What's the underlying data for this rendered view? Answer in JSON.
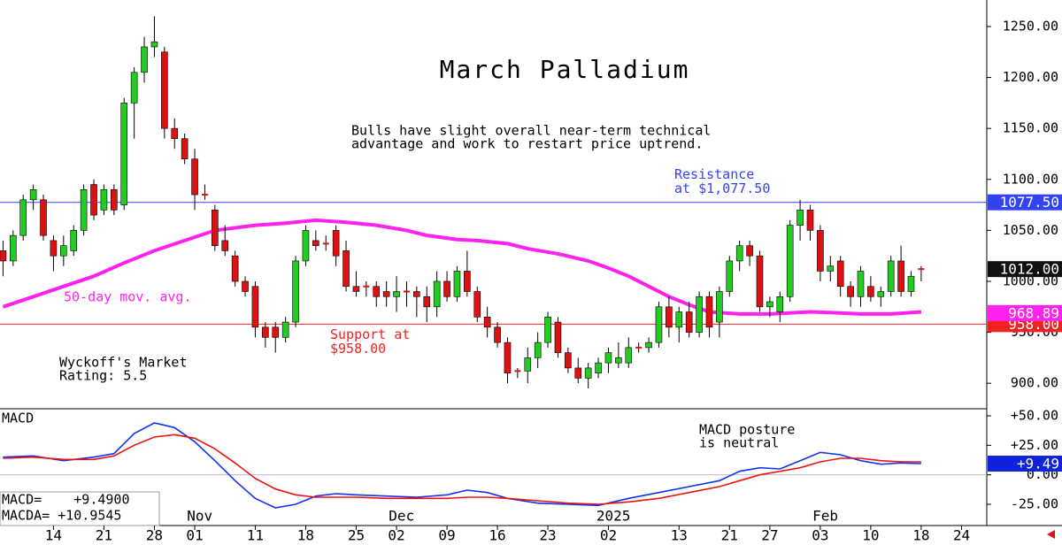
{
  "chart_data": [
    {
      "type": "candlestick",
      "title": "March Palladium",
      "notes": [
        {
          "lines": [
            "Bulls have slight overall near-term technical",
            "advantage and work to restart price uptrend."
          ],
          "color": "#000000"
        },
        {
          "lines": [
            "Wyckoff's Market",
            "Rating: 5.5"
          ],
          "color": "#000000"
        }
      ],
      "xlim": [
        -0.3,
        97.5
      ],
      "ylim": [
        875,
        1276
      ],
      "yticks": [
        {
          "value": 900,
          "label": "900.00"
        },
        {
          "value": 950,
          "label": "950.00"
        },
        {
          "value": 1000,
          "label": "1000.00"
        },
        {
          "value": 1050,
          "label": "1050.00"
        },
        {
          "value": 1100,
          "label": "1100.00"
        },
        {
          "value": 1150,
          "label": "1150.00"
        },
        {
          "value": 1200,
          "label": "1200.00"
        },
        {
          "value": 1250,
          "label": "1250.00"
        }
      ],
      "up_color": "#22cc22",
      "down_color": "#dd1111",
      "x": [
        0,
        1,
        2,
        3,
        4,
        5,
        6,
        7,
        8,
        9,
        10,
        11,
        12,
        13,
        14,
        15,
        16,
        17,
        18,
        19,
        20,
        21,
        22,
        23,
        24,
        25,
        26,
        27,
        28,
        29,
        30,
        31,
        32,
        33,
        34,
        35,
        36,
        37,
        38,
        39,
        40,
        41,
        42,
        43,
        44,
        45,
        46,
        47,
        48,
        49,
        50,
        51,
        52,
        53,
        54,
        55,
        56,
        57,
        58,
        59,
        60,
        61,
        62,
        63,
        64,
        65,
        66,
        67,
        68,
        69,
        70,
        71,
        72,
        73,
        74,
        75,
        76,
        77,
        78,
        79,
        80,
        81,
        82,
        83,
        84,
        85,
        86,
        87,
        88,
        89,
        90,
        91
      ],
      "open": [
        1030,
        1020,
        1045,
        1080,
        1080,
        1040,
        1025,
        1030,
        1050,
        1095,
        1070,
        1090,
        1075,
        1175,
        1205,
        1230,
        1225,
        1150,
        1140,
        1120,
        1085,
        1070,
        1040,
        1025,
        1000,
        995,
        955,
        955,
        945,
        960,
        1020,
        1040,
        1037,
        1050,
        1030,
        995,
        995,
        995,
        990,
        985,
        990,
        990,
        985,
        975,
        1000,
        985,
        1010,
        990,
        965,
        955,
        940,
        912,
        912,
        925,
        940,
        960,
        930,
        915,
        905,
        910,
        920,
        920,
        920,
        935,
        935,
        940,
        975,
        955,
        970,
        950,
        985,
        960,
        990,
        1020,
        1035,
        1025,
        975,
        970,
        985,
        1055,
        1070,
        1050,
        1010,
        1020,
        995,
        985,
        995,
        985,
        990,
        1020,
        990,
        1012
      ],
      "high": [
        1040,
        1050,
        1085,
        1095,
        1085,
        1045,
        1045,
        1055,
        1095,
        1100,
        1095,
        1095,
        1180,
        1210,
        1240,
        1260,
        1230,
        1160,
        1145,
        1130,
        1095,
        1075,
        1055,
        1030,
        1005,
        1000,
        960,
        960,
        965,
        1025,
        1055,
        1050,
        1045,
        1055,
        1040,
        1010,
        1000,
        1000,
        1000,
        1005,
        1000,
        995,
        995,
        1010,
        1010,
        1015,
        1030,
        995,
        975,
        960,
        945,
        915,
        935,
        950,
        970,
        965,
        935,
        925,
        920,
        925,
        935,
        940,
        945,
        940,
        945,
        980,
        985,
        975,
        980,
        990,
        990,
        995,
        1025,
        1040,
        1040,
        1030,
        985,
        990,
        1060,
        1080,
        1075,
        1055,
        1025,
        1025,
        1000,
        1015,
        1005,
        995,
        1025,
        1035,
        1010,
        1015
      ],
      "low": [
        1005,
        1015,
        1040,
        1070,
        1040,
        1010,
        1015,
        1025,
        1045,
        1060,
        1065,
        1065,
        1070,
        1140,
        1195,
        1220,
        1140,
        1130,
        1115,
        1070,
        1080,
        1030,
        1025,
        995,
        985,
        945,
        935,
        930,
        940,
        955,
        1015,
        1030,
        1030,
        1015,
        990,
        985,
        985,
        975,
        975,
        970,
        975,
        965,
        960,
        965,
        980,
        980,
        985,
        960,
        945,
        935,
        900,
        905,
        900,
        915,
        935,
        925,
        910,
        900,
        895,
        905,
        910,
        915,
        915,
        930,
        930,
        935,
        945,
        940,
        945,
        945,
        945,
        945,
        985,
        1010,
        1015,
        970,
        965,
        960,
        980,
        1040,
        1040,
        1000,
        1000,
        985,
        975,
        975,
        980,
        975,
        985,
        985,
        985,
        1000
      ],
      "close": [
        1020,
        1045,
        1080,
        1090,
        1045,
        1025,
        1035,
        1050,
        1090,
        1065,
        1090,
        1070,
        1175,
        1205,
        1230,
        1235,
        1150,
        1140,
        1120,
        1085,
        1085,
        1035,
        1030,
        1000,
        990,
        955,
        945,
        945,
        960,
        1020,
        1050,
        1035,
        1037,
        1025,
        995,
        990,
        995,
        985,
        985,
        990,
        990,
        985,
        975,
        1000,
        985,
        1010,
        990,
        965,
        955,
        940,
        910,
        912,
        925,
        940,
        965,
        930,
        915,
        905,
        915,
        920,
        930,
        925,
        935,
        935,
        940,
        975,
        955,
        970,
        950,
        985,
        955,
        990,
        1020,
        1035,
        1025,
        975,
        980,
        985,
        1055,
        1070,
        1050,
        1010,
        1015,
        995,
        985,
        1010,
        985,
        990,
        1020,
        990,
        1005,
        1012
      ],
      "series": [
        {
          "name": "50-day mov. avg.",
          "color": "#ff22ee",
          "x": [
            0,
            3,
            6,
            9,
            12,
            15,
            18,
            21,
            25,
            28,
            31,
            34,
            37,
            40,
            42,
            45,
            47,
            50,
            52,
            55,
            58,
            60,
            62,
            64,
            66,
            68,
            70,
            73,
            76,
            80,
            83,
            85,
            88,
            91
          ],
          "values": [
            975,
            985,
            995,
            1005,
            1018,
            1030,
            1040,
            1050,
            1055,
            1057,
            1060,
            1058,
            1055,
            1050,
            1045,
            1041,
            1040,
            1037,
            1032,
            1027,
            1020,
            1013,
            1005,
            995,
            985,
            977,
            970,
            968,
            968,
            970,
            969,
            968,
            968,
            970
          ]
        }
      ],
      "levels": [
        {
          "value": 1077.5,
          "lines": [
            "Resistance",
            "at $1,077.50"
          ],
          "color": "#3344ee",
          "badge": "1077.50"
        },
        {
          "value": 958,
          "lines": [
            "Support at",
            "$958.00"
          ],
          "color": "#ee2222",
          "badge": "958.00"
        }
      ],
      "badges": [
        {
          "value": 1012,
          "label": "1012.00",
          "color": "#111111"
        },
        {
          "value": 968.89,
          "label": "968.89",
          "color": "#ff22ee"
        }
      ]
    },
    {
      "type": "line",
      "title": "MACD",
      "notes": [
        {
          "lines": [
            "MACD posture",
            "is neutral"
          ],
          "color": "#000000"
        }
      ],
      "readout": [
        "MACD=    +9.4900",
        "MACDA= +10.9545"
      ],
      "xlim": [
        -0.3,
        97.5
      ],
      "ylim": [
        -43,
        56
      ],
      "yticks": [
        {
          "value": -25,
          "label": "-25.00"
        },
        {
          "value": 0,
          "label": "0.00"
        },
        {
          "value": 25,
          "label": "+25.00"
        },
        {
          "value": 50,
          "label": "+50.00"
        }
      ],
      "x": [
        0,
        3,
        6,
        9,
        11,
        13,
        15,
        17,
        19,
        21,
        23,
        25,
        27,
        29,
        31,
        33,
        35,
        38,
        41,
        44,
        46,
        48,
        50,
        53,
        56,
        59,
        62,
        65,
        68,
        71,
        73,
        75,
        77,
        79,
        81,
        83,
        85,
        87,
        89,
        91
      ],
      "series": [
        {
          "name": "MACD",
          "color": "#1133ee",
          "values": [
            15,
            16,
            12,
            15,
            18,
            35,
            44,
            40,
            28,
            12,
            -5,
            -20,
            -28,
            -25,
            -18,
            -16,
            -17,
            -18,
            -19,
            -17,
            -13,
            -15,
            -20,
            -24,
            -25,
            -26,
            -20,
            -15,
            -10,
            -5,
            3,
            6,
            5,
            12,
            19,
            17,
            12,
            9,
            10,
            9.5
          ]
        },
        {
          "name": "MACDA",
          "color": "#ee1111",
          "values": [
            14,
            15,
            13,
            13,
            16,
            25,
            32,
            34,
            31,
            22,
            10,
            -3,
            -12,
            -17,
            -19,
            -19,
            -19,
            -20,
            -20,
            -20,
            -19,
            -19,
            -20,
            -22,
            -24,
            -25,
            -23,
            -20,
            -15,
            -10,
            -5,
            0,
            3,
            6,
            11,
            14,
            14,
            12,
            11,
            11
          ]
        }
      ],
      "badge": {
        "value": 9.49,
        "label": "+9.49",
        "color": "#1122dd"
      },
      "xticks": [
        {
          "value": 5,
          "label": "14"
        },
        {
          "value": 10,
          "label": "21"
        },
        {
          "value": 15,
          "label": "28"
        },
        {
          "value": 19,
          "label": "01"
        },
        {
          "value": 25,
          "label": "11"
        },
        {
          "value": 30,
          "label": "18"
        },
        {
          "value": 35,
          "label": "25"
        },
        {
          "value": 39,
          "label": "02"
        },
        {
          "value": 44,
          "label": "09"
        },
        {
          "value": 49,
          "label": "16"
        },
        {
          "value": 54,
          "label": "23"
        },
        {
          "value": 60,
          "label": "02"
        },
        {
          "value": 67,
          "label": "13"
        },
        {
          "value": 72,
          "label": "21"
        },
        {
          "value": 76,
          "label": "27"
        },
        {
          "value": 81,
          "label": "03"
        },
        {
          "value": 86,
          "label": "10"
        },
        {
          "value": 91,
          "label": "18"
        },
        {
          "value": 95,
          "label": "24"
        }
      ],
      "period_labels": [
        {
          "value": 19.5,
          "label": "Nov"
        },
        {
          "value": 39.5,
          "label": "Dec"
        },
        {
          "value": 60.5,
          "label": "2025"
        },
        {
          "value": 81.5,
          "label": "Feb"
        }
      ]
    }
  ]
}
